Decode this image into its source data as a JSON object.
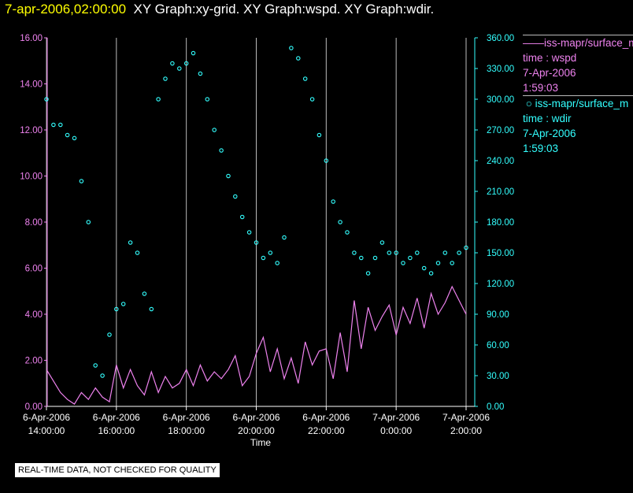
{
  "header": {
    "date_label": "7-apr-2006,02:00:00",
    "graphs_label": "XY Graph:xy-grid.  XY Graph:wspd.  XY Graph:wdir."
  },
  "legend": {
    "series1_name": "iss-mapr/surface_m",
    "series1_time": "time : wspd",
    "series1_date": "7-Apr-2006",
    "series1_clock": "1:59:03",
    "series2_name": "iss-mapr/surface_m",
    "series2_time": "time : wdir",
    "series2_date": "7-Apr-2006",
    "series2_clock": "1:59:03"
  },
  "footer": {
    "quality_note": "REAL-TIME DATA, NOT CHECKED FOR QUALITY"
  },
  "colors": {
    "wspd": "#ee82ee",
    "wdir": "#33ffff",
    "left_axis": "#ee82ee",
    "right_axis": "#33ffff",
    "grid": "#bbbbbb"
  },
  "chart_data": {
    "type": "line",
    "title": "",
    "xlabel": "Time",
    "x_range_hours": [
      14.0,
      26.0
    ],
    "x_ticks": [
      {
        "hour": 14,
        "date": "6-Apr-2006",
        "time": "14:00:00"
      },
      {
        "hour": 16,
        "date": "6-Apr-2006",
        "time": "16:00:00"
      },
      {
        "hour": 18,
        "date": "6-Apr-2006",
        "time": "18:00:00"
      },
      {
        "hour": 20,
        "date": "6-Apr-2006",
        "time": "20:00:00"
      },
      {
        "hour": 22,
        "date": "6-Apr-2006",
        "time": "22:00:00"
      },
      {
        "hour": 24,
        "date": "7-Apr-2006",
        "time": "0:00:00"
      },
      {
        "hour": 26,
        "date": "7-Apr-2006",
        "time": "2:00:00"
      }
    ],
    "left_axis": {
      "name": "wspd",
      "ylim": [
        0,
        16
      ],
      "ticks": [
        "0.00",
        "2.00",
        "4.00",
        "6.00",
        "8.00",
        "10.00",
        "12.00",
        "14.00",
        "16.00"
      ]
    },
    "right_axis": {
      "name": "wdir",
      "ylim": [
        0,
        360
      ],
      "ticks": [
        "0.00",
        "30.00",
        "60.00",
        "90.00",
        "120.00",
        "150.00",
        "180.00",
        "210.00",
        "240.00",
        "270.00",
        "300.00",
        "330.00",
        "360.00"
      ]
    },
    "series": [
      {
        "name": "wspd",
        "axis": "left",
        "style": "line",
        "x": [
          14.0,
          14.2,
          14.4,
          14.6,
          14.8,
          15.0,
          15.2,
          15.4,
          15.6,
          15.8,
          16.0,
          16.2,
          16.4,
          16.6,
          16.8,
          17.0,
          17.2,
          17.4,
          17.6,
          17.8,
          18.0,
          18.2,
          18.4,
          18.6,
          18.8,
          19.0,
          19.2,
          19.4,
          19.6,
          19.8,
          20.0,
          20.2,
          20.4,
          20.6,
          20.8,
          21.0,
          21.2,
          21.4,
          21.6,
          21.8,
          22.0,
          22.2,
          22.4,
          22.6,
          22.8,
          23.0,
          23.2,
          23.4,
          23.6,
          23.8,
          24.0,
          24.2,
          24.4,
          24.6,
          24.8,
          25.0,
          25.2,
          25.4,
          25.6,
          25.8,
          26.0
        ],
        "values": [
          1.6,
          1.1,
          0.6,
          0.3,
          0.1,
          0.6,
          0.3,
          0.8,
          0.4,
          0.2,
          1.8,
          0.8,
          1.6,
          0.9,
          0.5,
          1.5,
          0.6,
          1.3,
          0.8,
          1.0,
          1.6,
          0.9,
          1.8,
          1.1,
          1.5,
          1.2,
          1.6,
          2.2,
          0.9,
          1.3,
          2.3,
          3.0,
          1.5,
          2.5,
          1.2,
          2.1,
          1.0,
          2.8,
          1.8,
          2.4,
          2.5,
          1.2,
          3.2,
          1.5,
          4.6,
          2.5,
          4.3,
          3.3,
          3.9,
          4.4,
          3.1,
          4.3,
          3.6,
          4.7,
          3.4,
          4.9,
          4.0,
          4.5,
          5.2,
          4.6,
          4.0
        ]
      },
      {
        "name": "wdir",
        "axis": "right",
        "style": "scatter",
        "x": [
          14.0,
          14.2,
          14.4,
          14.6,
          14.8,
          15.0,
          15.2,
          15.4,
          15.6,
          15.8,
          16.0,
          16.2,
          16.4,
          16.6,
          16.8,
          17.0,
          17.2,
          17.4,
          17.6,
          17.8,
          18.0,
          18.2,
          18.4,
          18.6,
          18.8,
          19.0,
          19.2,
          19.4,
          19.6,
          19.8,
          20.0,
          20.2,
          20.4,
          20.6,
          20.8,
          21.0,
          21.2,
          21.4,
          21.6,
          21.8,
          22.0,
          22.2,
          22.4,
          22.6,
          22.8,
          23.0,
          23.2,
          23.4,
          23.6,
          23.8,
          24.0,
          24.2,
          24.4,
          24.6,
          24.8,
          25.0,
          25.2,
          25.4,
          25.6,
          25.8,
          26.0
        ],
        "values": [
          300,
          275,
          275,
          265,
          262,
          220,
          180,
          40,
          30,
          70,
          95,
          100,
          160,
          150,
          110,
          95,
          300,
          320,
          335,
          330,
          335,
          345,
          325,
          300,
          270,
          250,
          225,
          205,
          185,
          170,
          160,
          145,
          150,
          140,
          165,
          350,
          340,
          320,
          300,
          265,
          240,
          200,
          180,
          170,
          150,
          145,
          130,
          145,
          160,
          150,
          150,
          140,
          145,
          150,
          135,
          130,
          140,
          150,
          140,
          150,
          155
        ]
      }
    ]
  }
}
